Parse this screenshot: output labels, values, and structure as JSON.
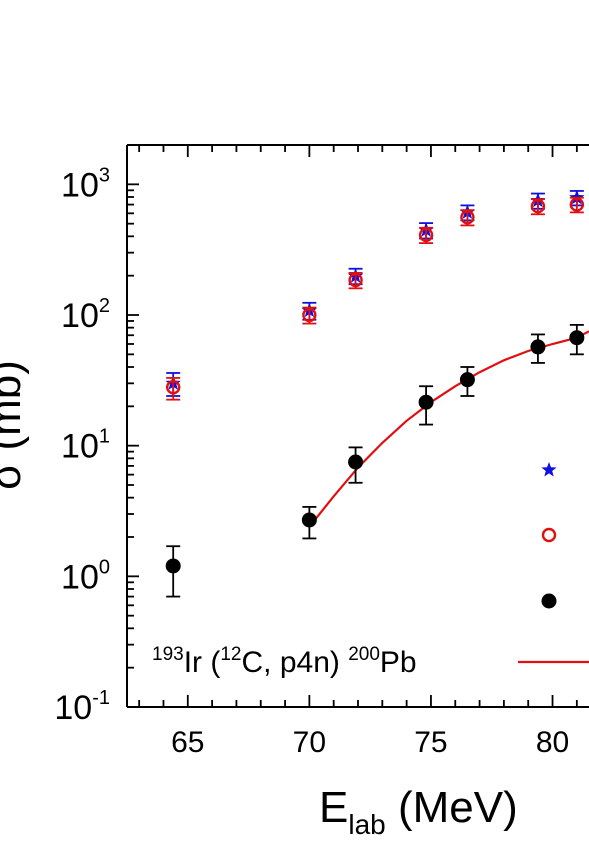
{
  "chart_data": {
    "type": "scatter",
    "xlabel": "E",
    "xlabel_sub": "lab",
    "xlabel_unit": "(MeV)",
    "ylabel": "σ (mb)",
    "y_scale": "log",
    "xlim": [
      62.5,
      81.5
    ],
    "ylim": [
      0.1,
      2000
    ],
    "x_ticks": [
      65,
      70,
      75,
      80
    ],
    "x_tick_labels": [
      "65",
      "70",
      "75",
      "80"
    ],
    "y_ticks": [
      {
        "value": 1000,
        "base": "10",
        "exp": "3"
      },
      {
        "value": 100,
        "base": "10",
        "exp": "2"
      },
      {
        "value": 10,
        "base": "10",
        "exp": "1"
      },
      {
        "value": 1,
        "base": "10",
        "exp": "0"
      },
      {
        "value": 0.1,
        "base": "10",
        "exp": "-1"
      }
    ],
    "series": [
      {
        "marker": "star",
        "color": "#1010e0",
        "points": [
          {
            "x": 64.4,
            "y": 30,
            "ylo": 24,
            "yhi": 36
          },
          {
            "x": 70.0,
            "y": 108,
            "ylo": 92,
            "yhi": 124
          },
          {
            "x": 71.9,
            "y": 198,
            "ylo": 172,
            "yhi": 226
          },
          {
            "x": 74.8,
            "y": 445,
            "ylo": 385,
            "yhi": 505
          },
          {
            "x": 76.5,
            "y": 610,
            "ylo": 530,
            "yhi": 690
          },
          {
            "x": 79.4,
            "y": 750,
            "ylo": 650,
            "yhi": 850
          },
          {
            "x": 81.0,
            "y": 790,
            "ylo": 690,
            "yhi": 890
          }
        ]
      },
      {
        "marker": "open-circle",
        "color": "#e01010",
        "points": [
          {
            "x": 64.4,
            "y": 28,
            "ylo": 22.5,
            "yhi": 33
          },
          {
            "x": 70.0,
            "y": 100,
            "ylo": 86,
            "yhi": 114
          },
          {
            "x": 71.9,
            "y": 185,
            "ylo": 160,
            "yhi": 210
          },
          {
            "x": 74.8,
            "y": 410,
            "ylo": 355,
            "yhi": 465
          },
          {
            "x": 76.5,
            "y": 560,
            "ylo": 485,
            "yhi": 635
          },
          {
            "x": 79.4,
            "y": 680,
            "ylo": 590,
            "yhi": 770
          },
          {
            "x": 81.0,
            "y": 700,
            "ylo": 610,
            "yhi": 790
          }
        ]
      },
      {
        "marker": "filled-circle",
        "color": "#000000",
        "points": [
          {
            "x": 64.4,
            "y": 1.2,
            "ylo": 0.7,
            "yhi": 1.7
          },
          {
            "x": 70.0,
            "y": 2.7,
            "ylo": 1.95,
            "yhi": 3.4
          },
          {
            "x": 71.9,
            "y": 7.5,
            "ylo": 5.2,
            "yhi": 9.7
          },
          {
            "x": 74.8,
            "y": 21.5,
            "ylo": 14.5,
            "yhi": 28.5
          },
          {
            "x": 76.5,
            "y": 32,
            "ylo": 24,
            "yhi": 40
          },
          {
            "x": 79.4,
            "y": 57,
            "ylo": 43,
            "yhi": 71
          },
          {
            "x": 81.0,
            "y": 67,
            "ylo": 50,
            "yhi": 84
          }
        ]
      }
    ],
    "curve": {
      "color": "#e01010",
      "label_parts": {
        "sup1": "193",
        "el1": "Ir (",
        "sup2": "12",
        "el2": "C, p4n) ",
        "sup3": "200",
        "el3": "Pb"
      },
      "points": [
        {
          "x": 70.0,
          "y": 2.4
        },
        {
          "x": 71.0,
          "y": 4.1
        },
        {
          "x": 72.0,
          "y": 6.8
        },
        {
          "x": 73.0,
          "y": 10.5
        },
        {
          "x": 74.0,
          "y": 15.5
        },
        {
          "x": 75.0,
          "y": 21.5
        },
        {
          "x": 76.0,
          "y": 28.5
        },
        {
          "x": 77.0,
          "y": 36.5
        },
        {
          "x": 78.0,
          "y": 45
        },
        {
          "x": 79.0,
          "y": 53
        },
        {
          "x": 80.0,
          "y": 60
        },
        {
          "x": 81.0,
          "y": 67
        },
        {
          "x": 81.5,
          "y": 75
        }
      ]
    },
    "legend_markers": [
      {
        "marker": "star",
        "color": "#1010e0"
      },
      {
        "marker": "open-circle",
        "color": "#e01010"
      },
      {
        "marker": "filled-circle",
        "color": "#000000"
      }
    ]
  }
}
